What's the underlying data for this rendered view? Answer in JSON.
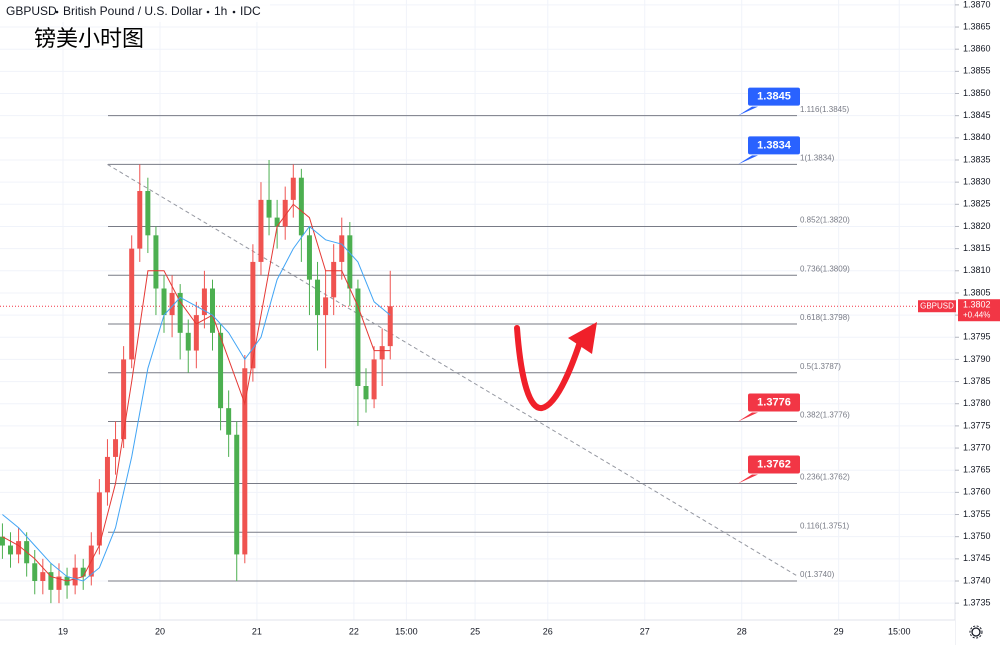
{
  "chart_data": {
    "type": "candlestick",
    "symbol": "GBPUSD",
    "description": "British Pound / U.S. Dollar",
    "interval": "1h",
    "source": "IDC",
    "title": "镑美小时图",
    "up_color": "#ef5350",
    "down_color": "#4caf50",
    "grid": true,
    "xlim": [
      -15.6,
      220.8
    ],
    "ylim": [
      1.37312,
      1.38711
    ],
    "xticks": [
      {
        "value": 0,
        "label": "19"
      },
      {
        "value": 24,
        "label": "20"
      },
      {
        "value": 48,
        "label": "21"
      },
      {
        "value": 72,
        "label": "22"
      },
      {
        "value": 85,
        "label": "15:00"
      },
      {
        "value": 102,
        "label": "25"
      },
      {
        "value": 120,
        "label": "26"
      },
      {
        "value": 144,
        "label": "27"
      },
      {
        "value": 168,
        "label": "28"
      },
      {
        "value": 192,
        "label": "29"
      },
      {
        "value": 207,
        "label": "15:00"
      }
    ],
    "yticks": [
      1.3735,
      {
        "value": 1.374,
        "label": "1.3740"
      },
      1.3745,
      {
        "value": 1.375,
        "label": "1.3750"
      },
      1.3755,
      {
        "value": 1.376,
        "label": "1.3760"
      },
      1.3765,
      {
        "value": 1.377,
        "label": "1.3770"
      },
      1.3775,
      {
        "value": 1.378,
        "label": "1.3780"
      },
      1.3785,
      {
        "value": 1.379,
        "label": "1.3790"
      },
      1.3795,
      {
        "value": 1.38,
        "label": "1.3800"
      },
      1.3805,
      {
        "value": 1.381,
        "label": "1.3810"
      },
      1.3815,
      {
        "value": 1.382,
        "label": "1.3820"
      },
      1.3825,
      {
        "value": 1.383,
        "label": "1.3830"
      },
      1.3835,
      {
        "value": 1.384,
        "label": "1.3840"
      },
      1.3845,
      {
        "value": 1.385,
        "label": "1.3850"
      },
      1.3855,
      {
        "value": 1.386,
        "label": "1.3860"
      },
      1.3865,
      {
        "value": 1.387,
        "label": "1.3870"
      }
    ],
    "x": [
      -15,
      -13,
      -11,
      -9,
      -7,
      -5,
      -3,
      -1,
      1,
      3,
      5,
      7,
      9,
      11,
      13,
      15,
      17,
      19,
      21,
      23,
      25,
      27,
      29,
      31,
      33,
      35,
      37,
      39,
      41,
      43,
      45,
      47,
      49,
      51,
      53,
      55,
      57,
      59,
      61,
      63,
      65,
      67,
      69,
      71,
      73,
      75,
      77,
      79,
      81
    ],
    "open": [
      1.375,
      1.3748,
      1.3746,
      1.3749,
      1.3744,
      1.374,
      1.3742,
      1.3738,
      1.3741,
      1.3739,
      1.3743,
      1.3741,
      1.3748,
      1.376,
      1.3768,
      1.3772,
      1.379,
      1.3815,
      1.3828,
      1.3818,
      1.3806,
      1.38,
      1.3805,
      1.3796,
      1.3792,
      1.38,
      1.3806,
      1.3796,
      1.3779,
      1.3773,
      1.3746,
      1.3788,
      1.3812,
      1.3826,
      1.3822,
      1.382,
      1.3826,
      1.3831,
      1.3818,
      1.3808,
      1.38,
      1.3804,
      1.3812,
      1.3818,
      1.3806,
      1.3784,
      1.3781,
      1.379,
      1.3793
    ],
    "high": [
      1.3753,
      1.3751,
      1.3752,
      1.3751,
      1.3747,
      1.3745,
      1.3744,
      1.3744,
      1.3743,
      1.3746,
      1.3745,
      1.3751,
      1.3763,
      1.3772,
      1.3776,
      1.3793,
      1.3818,
      1.3834,
      1.3831,
      1.382,
      1.3809,
      1.3809,
      1.3807,
      1.3799,
      1.3803,
      1.381,
      1.3808,
      1.3798,
      1.3783,
      1.3776,
      1.3791,
      1.3816,
      1.383,
      1.3835,
      1.3826,
      1.3829,
      1.3834,
      1.3833,
      1.382,
      1.3812,
      1.381,
      1.3816,
      1.3822,
      1.3821,
      1.3808,
      1.3788,
      1.3793,
      1.3797,
      1.381
    ],
    "low": [
      1.3745,
      1.3743,
      1.3744,
      1.3741,
      1.3737,
      1.3737,
      1.3735,
      1.3735,
      1.3736,
      1.3737,
      1.3738,
      1.3739,
      1.3746,
      1.3757,
      1.3764,
      1.377,
      1.3788,
      1.3812,
      1.3814,
      1.38,
      1.3796,
      1.3795,
      1.379,
      1.3787,
      1.3788,
      1.3797,
      1.3792,
      1.3774,
      1.3768,
      1.374,
      1.3744,
      1.3785,
      1.3809,
      1.3818,
      1.3815,
      1.3817,
      1.3822,
      1.3812,
      1.38,
      1.3792,
      1.3788,
      1.38,
      1.3808,
      1.3802,
      1.3775,
      1.3778,
      1.3779,
      1.3784,
      1.379
    ],
    "close": [
      1.3748,
      1.3746,
      1.3749,
      1.3744,
      1.374,
      1.3742,
      1.3738,
      1.3741,
      1.3739,
      1.3743,
      1.3741,
      1.3748,
      1.376,
      1.3768,
      1.3772,
      1.379,
      1.3815,
      1.3828,
      1.3818,
      1.3806,
      1.38,
      1.3805,
      1.3796,
      1.3792,
      1.38,
      1.3806,
      1.3796,
      1.3779,
      1.3773,
      1.3746,
      1.3788,
      1.3812,
      1.3826,
      1.3822,
      1.382,
      1.3826,
      1.3831,
      1.3818,
      1.3808,
      1.38,
      1.3804,
      1.3812,
      1.3818,
      1.3806,
      1.3784,
      1.3781,
      1.379,
      1.3793,
      1.3802
    ],
    "moving_averages": [
      {
        "color": "#e53935",
        "x": [
          -15,
          -11,
          -7,
          -3,
          1,
          5,
          9,
          13,
          17,
          21,
          25,
          29,
          33,
          37,
          41,
          45,
          49,
          53,
          57,
          61,
          65,
          69,
          73,
          77,
          81
        ],
        "values": [
          1.375,
          1.3748,
          1.3745,
          1.3741,
          1.374,
          1.3741,
          1.3748,
          1.3762,
          1.3785,
          1.381,
          1.381,
          1.3803,
          1.3798,
          1.38,
          1.379,
          1.378,
          1.38,
          1.382,
          1.3825,
          1.3822,
          1.381,
          1.381,
          1.3802,
          1.3792,
          1.3792
        ]
      },
      {
        "color": "#42a5f5",
        "x": [
          -15,
          -11,
          -7,
          -3,
          1,
          5,
          9,
          13,
          17,
          21,
          25,
          29,
          33,
          37,
          41,
          45,
          49,
          53,
          57,
          61,
          65,
          69,
          73,
          77,
          81
        ],
        "values": [
          1.3755,
          1.3752,
          1.3748,
          1.3744,
          1.3741,
          1.374,
          1.3743,
          1.3752,
          1.3768,
          1.3788,
          1.38,
          1.3804,
          1.3802,
          1.38,
          1.3796,
          1.379,
          1.3795,
          1.3808,
          1.3815,
          1.382,
          1.3817,
          1.3816,
          1.3812,
          1.3803,
          1.38
        ]
      }
    ],
    "levels": [
      {
        "label": "1.116(1.3845)",
        "value": 1.3845
      },
      {
        "label": "1(1.3834)",
        "value": 1.3834
      },
      {
        "label": "0.852(1.3820)",
        "value": 1.382
      },
      {
        "label": "0.736(1.3809)",
        "value": 1.3809
      },
      {
        "label": "0.618(1.3798)",
        "value": 1.3798
      },
      {
        "label": "0.5(1.3787)",
        "value": 1.3787
      },
      {
        "label": "0.382(1.3776)",
        "value": 1.3776
      },
      {
        "label": "0.236(1.3762)",
        "value": 1.3762
      },
      {
        "label": "0.116(1.3751)",
        "value": 1.3751
      },
      {
        "label": "0(1.3740)",
        "value": 1.374
      }
    ],
    "callouts": [
      {
        "value": 1.3845,
        "color": "#2962ff"
      },
      {
        "value": 1.3834,
        "color": "#2962ff"
      },
      {
        "value": 1.3776,
        "color": "#f23645"
      },
      {
        "value": 1.3762,
        "color": "#f23645"
      }
    ],
    "trendline": {
      "x": [
        11,
        182
      ],
      "values": [
        1.3834,
        1.3741
      ]
    },
    "last": {
      "value": 1.3802,
      "change": "+0.44%",
      "color": "#f23645"
    }
  }
}
